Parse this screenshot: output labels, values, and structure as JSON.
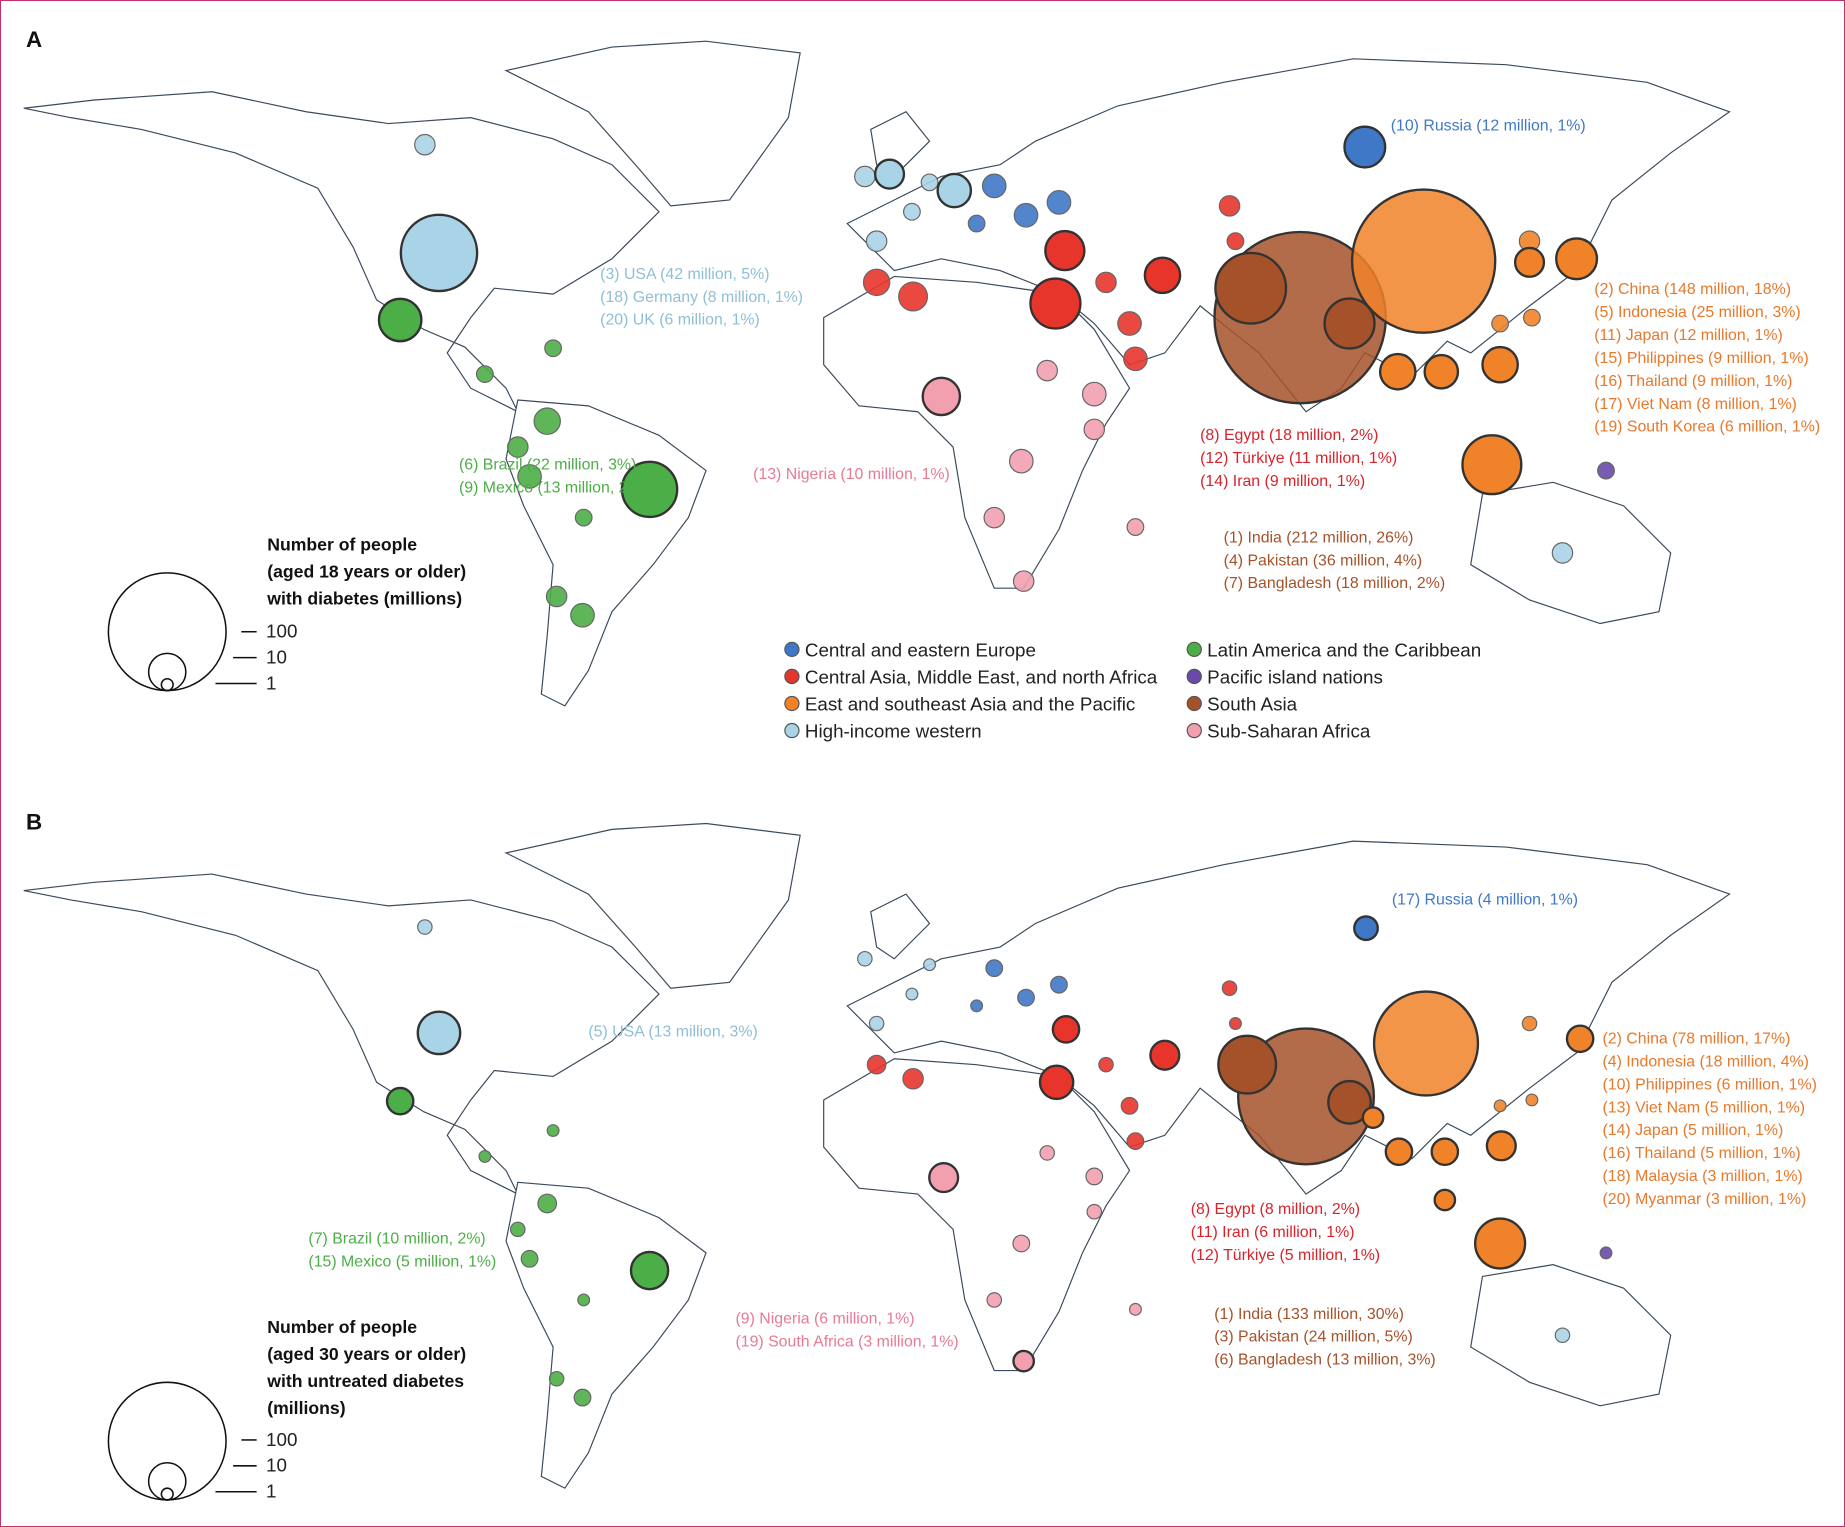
{
  "colors": {
    "Central and eastern Europe": "#3f78c6",
    "Central Asia, Middle East, and north Africa": "#e8352c",
    "East and southeast Asia and the Pacific": "#f08329",
    "High-income western": "#a9d3e6",
    "Latin America and the Caribbean": "#4cae47",
    "Pacific island nations": "#6a4aa8",
    "South Asia": "#a5522a",
    "Sub-Saharan Africa": "#f2a0b0"
  },
  "label_colors": {
    "Central and eastern Europe": "#3f78c6",
    "Central Asia, Middle East, and north Africa": "#d8232a",
    "East and southeast Asia and the Pacific": "#e8782a",
    "High-income western": "#8fbfd6",
    "Latin America and the Caribbean": "#4cae47",
    "South Asia": "#a5522a",
    "Sub-Saharan Africa": "#e87a94"
  },
  "legend": {
    "regions": [
      "Central and eastern Europe",
      "Central Asia, Middle East, and north Africa",
      "East and southeast Asia and the Pacific",
      "High-income western",
      "Latin America and the Caribbean",
      "Pacific island nations",
      "South Asia",
      "Sub-Saharan Africa"
    ],
    "size_ticks": [
      "100",
      "10",
      "1"
    ]
  },
  "panels": [
    {
      "letter": "A",
      "size_title": [
        "Number of people",
        "(aged 18 years or older)",
        "with diabetes (millions)"
      ],
      "labels": [
        {
          "region": "Central and eastern Europe",
          "lines": [
            "(10) Russia (12 million, 1%)"
          ]
        },
        {
          "region": "High-income western",
          "lines": [
            "(3) USA (42 million, 5%)",
            "(18) Germany (8 million, 1%)",
            "(20) UK (6 million, 1%)"
          ]
        },
        {
          "region": "East and southeast Asia and the Pacific",
          "lines": [
            "(2) China (148 million, 18%)",
            "(5) Indonesia (25 million, 3%)",
            "(11) Japan (12 million, 1%)",
            "(15) Philippines (9 million, 1%)",
            "(16) Thailand (9 million, 1%)",
            "(17) Viet Nam (8 million, 1%)",
            "(19) South Korea (6 million, 1%)"
          ]
        },
        {
          "region": "Latin America and the Caribbean",
          "lines": [
            "(6) Brazil (22 million, 3%)",
            "(9) Mexico (13 million, 2%)"
          ]
        },
        {
          "region": "Sub-Saharan Africa",
          "lines": [
            "(13) Nigeria (10 million, 1%)"
          ]
        },
        {
          "region": "Central Asia, Middle East, and north Africa",
          "lines": [
            "(8) Egypt (18 million, 2%)",
            "(12) Türkiye  (11 million, 1%)",
            "(14) Iran (9 million, 1%)"
          ]
        },
        {
          "region": "South Asia",
          "lines": [
            "(1) India (212 million, 26%)",
            "(4) Pakistan (36 million, 4%)",
            "(7) Bangladesh (18 million, 2%)"
          ]
        }
      ],
      "countries": [
        {
          "name": "China",
          "value": 148,
          "region": "East and southeast Asia and the Pacific"
        },
        {
          "name": "India",
          "value": 212,
          "region": "South Asia"
        },
        {
          "name": "Pakistan",
          "value": 36,
          "region": "South Asia"
        },
        {
          "name": "Bangladesh",
          "value": 18,
          "region": "South Asia"
        },
        {
          "name": "USA",
          "value": 42,
          "region": "High-income western"
        },
        {
          "name": "Brazil",
          "value": 22,
          "region": "Latin America and the Caribbean"
        },
        {
          "name": "Mexico",
          "value": 13,
          "region": "Latin America and the Caribbean"
        },
        {
          "name": "Russia",
          "value": 12,
          "region": "Central and eastern Europe"
        },
        {
          "name": "Egypt",
          "value": 18,
          "region": "Central Asia, Middle East, and north Africa"
        },
        {
          "name": "Türkiye",
          "value": 11,
          "region": "Central Asia, Middle East, and north Africa"
        },
        {
          "name": "Iran",
          "value": 9,
          "region": "Central Asia, Middle East, and north Africa"
        },
        {
          "name": "Nigeria",
          "value": 10,
          "region": "Sub-Saharan Africa"
        },
        {
          "name": "Indonesia",
          "value": 25,
          "region": "East and southeast Asia and the Pacific"
        },
        {
          "name": "Japan",
          "value": 12,
          "region": "East and southeast Asia and the Pacific"
        },
        {
          "name": "Philippines",
          "value": 9,
          "region": "East and southeast Asia and the Pacific"
        },
        {
          "name": "Thailand",
          "value": 9,
          "region": "East and southeast Asia and the Pacific"
        },
        {
          "name": "Viet Nam",
          "value": 8,
          "region": "East and southeast Asia and the Pacific"
        },
        {
          "name": "South Korea",
          "value": 6,
          "region": "East and southeast Asia and the Pacific"
        },
        {
          "name": "Germany",
          "value": 8,
          "region": "High-income western"
        },
        {
          "name": "UK",
          "value": 6,
          "region": "High-income western"
        }
      ]
    },
    {
      "letter": "B",
      "size_title": [
        "Number of people",
        "(aged 30 years or older)",
        "with untreated diabetes",
        "(millions)"
      ],
      "labels": [
        {
          "region": "Central and eastern Europe",
          "lines": [
            "(17) Russia (4 million, 1%)"
          ]
        },
        {
          "region": "High-income western",
          "lines": [
            "(5) USA (13 million, 3%)"
          ]
        },
        {
          "region": "East and southeast Asia and the Pacific",
          "lines": [
            "(2) China (78 million, 17%)",
            "(4) Indonesia (18 million, 4%)",
            "(10) Philippines (6 million, 1%)",
            "(13) Viet Nam (5 million, 1%)",
            "(14) Japan (5 million, 1%)",
            "(16) Thailand (5 million, 1%)",
            "(18) Malaysia (3 million, 1%)",
            "(20) Myanmar (3 million, 1%)"
          ]
        },
        {
          "region": "Latin America and the Caribbean",
          "lines": [
            "(7) Brazil (10 million, 2%)",
            "(15) Mexico (5 million, 1%)"
          ]
        },
        {
          "region": "Sub-Saharan Africa",
          "lines": [
            "(9) Nigeria (6 million, 1%)",
            "(19) South Africa (3 million, 1%)"
          ]
        },
        {
          "region": "Central Asia, Middle East, and north Africa",
          "lines": [
            "(8) Egypt (8 million, 2%)",
            "(11) Iran (6 million, 1%)",
            "(12) Türkiye  (5 million, 1%)"
          ]
        },
        {
          "region": "South Asia",
          "lines": [
            "(1) India (133 million, 30%)",
            "(3) Pakistan (24 million, 5%)",
            "(6) Bangladesh (13 million, 3%)"
          ]
        }
      ],
      "countries": [
        {
          "name": "China",
          "value": 78,
          "region": "East and southeast Asia and the Pacific"
        },
        {
          "name": "India",
          "value": 133,
          "region": "South Asia"
        },
        {
          "name": "Pakistan",
          "value": 24,
          "region": "South Asia"
        },
        {
          "name": "Bangladesh",
          "value": 13,
          "region": "South Asia"
        },
        {
          "name": "USA",
          "value": 13,
          "region": "High-income western"
        },
        {
          "name": "Brazil",
          "value": 10,
          "region": "Latin America and the Caribbean"
        },
        {
          "name": "Mexico",
          "value": 5,
          "region": "Latin America and the Caribbean"
        },
        {
          "name": "Russia",
          "value": 4,
          "region": "Central and eastern Europe"
        },
        {
          "name": "Egypt",
          "value": 8,
          "region": "Central Asia, Middle East, and north Africa"
        },
        {
          "name": "Iran",
          "value": 6,
          "region": "Central Asia, Middle East, and north Africa"
        },
        {
          "name": "Türkiye",
          "value": 5,
          "region": "Central Asia, Middle East, and north Africa"
        },
        {
          "name": "Nigeria",
          "value": 6,
          "region": "Sub-Saharan Africa"
        },
        {
          "name": "South Africa",
          "value": 3,
          "region": "Sub-Saharan Africa"
        },
        {
          "name": "Indonesia",
          "value": 18,
          "region": "East and southeast Asia and the Pacific"
        },
        {
          "name": "Philippines",
          "value": 6,
          "region": "East and southeast Asia and the Pacific"
        },
        {
          "name": "Viet Nam",
          "value": 5,
          "region": "East and southeast Asia and the Pacific"
        },
        {
          "name": "Japan",
          "value": 5,
          "region": "East and southeast Asia and the Pacific"
        },
        {
          "name": "Thailand",
          "value": 5,
          "region": "East and southeast Asia and the Pacific"
        },
        {
          "name": "Malaysia",
          "value": 3,
          "region": "East and southeast Asia and the Pacific"
        },
        {
          "name": "Myanmar",
          "value": 3,
          "region": "East and southeast Asia and the Pacific"
        }
      ]
    }
  ]
}
